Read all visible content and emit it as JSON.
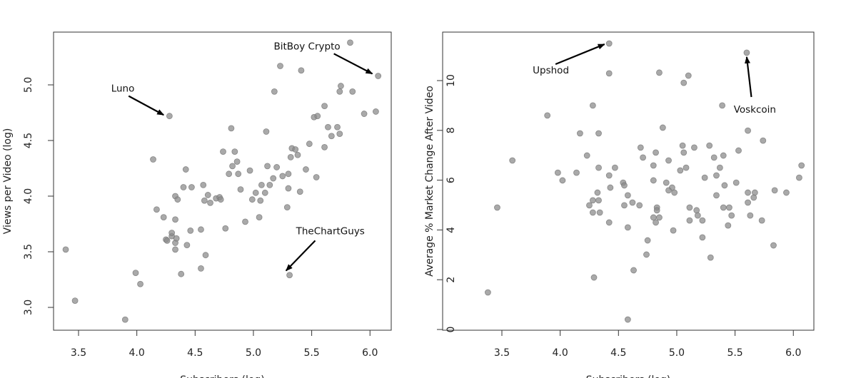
{
  "chart_data": [
    {
      "type": "scatter",
      "title": "",
      "xlabel": "Subscribers (log)",
      "ylabel": "Views per Video (log)",
      "xlim": [
        3.3,
        6.1
      ],
      "ylim": [
        2.8,
        5.45
      ],
      "xticks": [
        "3.5",
        "4.0",
        "4.5",
        "5.0",
        "5.5",
        "6.0"
      ],
      "yticks": [
        "3.0",
        "3.5",
        "4.0",
        "4.5",
        "5.0"
      ],
      "grid": false,
      "point_color": "#8c8c8c",
      "points": [
        [
          3.39,
          3.52
        ],
        [
          3.47,
          3.06
        ],
        [
          3.9,
          2.89
        ],
        [
          3.99,
          3.31
        ],
        [
          4.03,
          3.21
        ],
        [
          4.14,
          4.33
        ],
        [
          4.17,
          3.88
        ],
        [
          4.23,
          3.81
        ],
        [
          4.28,
          4.72
        ],
        [
          4.25,
          3.61
        ],
        [
          4.26,
          3.6
        ],
        [
          4.3,
          3.64
        ],
        [
          4.3,
          3.67
        ],
        [
          4.33,
          4.0
        ],
        [
          4.33,
          3.79
        ],
        [
          4.33,
          3.58
        ],
        [
          4.33,
          3.52
        ],
        [
          4.34,
          3.62
        ],
        [
          4.35,
          3.97
        ],
        [
          4.38,
          3.3
        ],
        [
          4.4,
          4.08
        ],
        [
          4.43,
          3.56
        ],
        [
          4.46,
          3.69
        ],
        [
          4.47,
          4.08
        ],
        [
          4.42,
          4.24
        ],
        [
          4.55,
          3.35
        ],
        [
          4.58,
          3.96
        ],
        [
          4.59,
          3.47
        ],
        [
          4.55,
          3.7
        ],
        [
          4.57,
          4.1
        ],
        [
          4.61,
          4.01
        ],
        [
          4.63,
          3.94
        ],
        [
          4.68,
          3.98
        ],
        [
          4.71,
          3.99
        ],
        [
          4.72,
          3.97
        ],
        [
          4.74,
          4.4
        ],
        [
          4.76,
          3.71
        ],
        [
          4.79,
          4.2
        ],
        [
          4.81,
          4.61
        ],
        [
          4.82,
          4.27
        ],
        [
          4.84,
          4.4
        ],
        [
          4.86,
          4.31
        ],
        [
          4.87,
          4.2
        ],
        [
          4.89,
          4.06
        ],
        [
          4.93,
          3.77
        ],
        [
          4.97,
          4.23
        ],
        [
          4.99,
          3.97
        ],
        [
          5.02,
          4.03
        ],
        [
          5.06,
          3.96
        ],
        [
          5.05,
          3.81
        ],
        [
          5.07,
          4.1
        ],
        [
          5.1,
          4.03
        ],
        [
          5.11,
          4.58
        ],
        [
          5.12,
          4.27
        ],
        [
          5.14,
          4.1
        ],
        [
          5.17,
          4.16
        ],
        [
          5.18,
          4.94
        ],
        [
          5.2,
          4.26
        ],
        [
          5.23,
          5.17
        ],
        [
          5.25,
          4.18
        ],
        [
          5.29,
          3.9
        ],
        [
          5.3,
          4.07
        ],
        [
          5.3,
          4.2
        ],
        [
          5.32,
          4.35
        ],
        [
          5.31,
          3.29
        ],
        [
          5.33,
          4.43
        ],
        [
          5.36,
          4.42
        ],
        [
          5.38,
          4.37
        ],
        [
          5.4,
          4.04
        ],
        [
          5.41,
          5.13
        ],
        [
          5.45,
          4.24
        ],
        [
          5.48,
          4.47
        ],
        [
          5.52,
          4.71
        ],
        [
          5.55,
          4.72
        ],
        [
          5.54,
          4.17
        ],
        [
          5.61,
          4.81
        ],
        [
          5.61,
          4.44
        ],
        [
          5.64,
          4.62
        ],
        [
          5.67,
          4.54
        ],
        [
          5.72,
          4.62
        ],
        [
          5.74,
          4.56
        ],
        [
          5.74,
          4.94
        ],
        [
          5.75,
          4.99
        ],
        [
          5.83,
          5.38
        ],
        [
          5.85,
          4.94
        ],
        [
          5.95,
          4.74
        ],
        [
          6.05,
          4.76
        ],
        [
          6.07,
          5.08
        ]
      ],
      "annotations": [
        {
          "text": "Luno",
          "label_at": [
            3.88,
            4.97
          ],
          "arrow_from": [
            3.93,
            4.9
          ],
          "arrow_to": [
            4.23,
            4.73
          ]
        },
        {
          "text": "BitBoy Crypto",
          "label_at": [
            5.46,
            5.35
          ],
          "arrow_from": [
            5.69,
            5.28
          ],
          "arrow_to": [
            6.02,
            5.1
          ]
        },
        {
          "text": "TheChartGuys",
          "label_at": [
            5.66,
            3.69
          ],
          "arrow_from": [
            5.53,
            3.6
          ],
          "arrow_to": [
            5.28,
            3.33
          ]
        }
      ]
    },
    {
      "type": "scatter",
      "title": "",
      "xlabel": "Subscribers (log)",
      "ylabel": "Average % Market Change After Video",
      "xlim": [
        3.3,
        6.1
      ],
      "ylim": [
        0,
        12
      ],
      "xticks": [
        "3.5",
        "4.0",
        "4.5",
        "5.0",
        "5.5",
        "6.0"
      ],
      "yticks": [
        "0",
        "2",
        "4",
        "6",
        "8",
        "10"
      ],
      "grid": false,
      "point_color": "#8c8c8c",
      "points": [
        [
          4.42,
          11.49
        ],
        [
          4.42,
          10.29
        ],
        [
          4.28,
          9.0
        ],
        [
          3.89,
          8.6
        ],
        [
          4.17,
          7.88
        ],
        [
          4.33,
          7.88
        ],
        [
          3.59,
          6.79
        ],
        [
          4.23,
          6.99
        ],
        [
          4.69,
          7.31
        ],
        [
          4.71,
          6.91
        ],
        [
          3.98,
          6.3
        ],
        [
          4.14,
          6.3
        ],
        [
          4.33,
          6.5
        ],
        [
          4.47,
          6.5
        ],
        [
          4.02,
          5.99
        ],
        [
          4.42,
          6.19
        ],
        [
          4.54,
          5.9
        ],
        [
          4.55,
          5.79
        ],
        [
          4.43,
          5.7
        ],
        [
          4.58,
          5.39
        ],
        [
          4.32,
          5.5
        ],
        [
          4.28,
          5.19
        ],
        [
          4.33,
          5.19
        ],
        [
          4.25,
          4.99
        ],
        [
          4.55,
          4.99
        ],
        [
          4.62,
          5.1
        ],
        [
          4.68,
          4.99
        ],
        [
          3.46,
          4.9
        ],
        [
          4.28,
          4.7
        ],
        [
          4.34,
          4.7
        ],
        [
          4.42,
          4.3
        ],
        [
          4.58,
          4.1
        ],
        [
          4.75,
          3.58
        ],
        [
          4.74,
          3.01
        ],
        [
          4.63,
          2.38
        ],
        [
          4.29,
          2.09
        ],
        [
          3.38,
          1.49
        ],
        [
          4.58,
          0.4
        ],
        [
          5.6,
          11.12
        ],
        [
          4.85,
          10.32
        ],
        [
          5.1,
          10.2
        ],
        [
          5.06,
          9.91
        ],
        [
          5.39,
          9.0
        ],
        [
          4.88,
          8.11
        ],
        [
          5.61,
          7.99
        ],
        [
          5.74,
          7.59
        ],
        [
          5.05,
          7.39
        ],
        [
          5.15,
          7.31
        ],
        [
          5.28,
          7.39
        ],
        [
          5.06,
          7.11
        ],
        [
          4.82,
          7.11
        ],
        [
          5.32,
          6.91
        ],
        [
          5.4,
          6.99
        ],
        [
          5.53,
          7.19
        ],
        [
          4.93,
          6.79
        ],
        [
          4.8,
          6.59
        ],
        [
          6.07,
          6.59
        ],
        [
          5.03,
          6.39
        ],
        [
          5.08,
          6.5
        ],
        [
          5.37,
          6.5
        ],
        [
          5.34,
          6.19
        ],
        [
          5.24,
          6.1
        ],
        [
          4.8,
          5.99
        ],
        [
          6.05,
          6.1
        ],
        [
          4.91,
          5.9
        ],
        [
          4.96,
          5.7
        ],
        [
          4.93,
          5.59
        ],
        [
          4.98,
          5.5
        ],
        [
          5.41,
          5.79
        ],
        [
          5.51,
          5.9
        ],
        [
          5.34,
          5.39
        ],
        [
          5.61,
          5.5
        ],
        [
          5.67,
          5.5
        ],
        [
          5.66,
          5.3
        ],
        [
          5.84,
          5.59
        ],
        [
          5.94,
          5.5
        ],
        [
          5.61,
          5.1
        ],
        [
          4.83,
          4.9
        ],
        [
          4.83,
          4.79
        ],
        [
          5.11,
          4.9
        ],
        [
          5.17,
          4.79
        ],
        [
          5.18,
          4.58
        ],
        [
          5.4,
          4.9
        ],
        [
          5.45,
          4.9
        ],
        [
          5.47,
          4.58
        ],
        [
          5.63,
          4.58
        ],
        [
          4.8,
          4.5
        ],
        [
          4.85,
          4.5
        ],
        [
          4.82,
          4.3
        ],
        [
          5.11,
          4.38
        ],
        [
          5.22,
          4.38
        ],
        [
          5.73,
          4.38
        ],
        [
          5.44,
          4.18
        ],
        [
          4.97,
          3.98
        ],
        [
          5.22,
          3.7
        ],
        [
          5.83,
          3.38
        ],
        [
          5.29,
          2.89
        ]
      ],
      "annotations": [
        {
          "text": "Upshod",
          "label_at": [
            3.92,
            10.43
          ],
          "arrow_from": [
            3.96,
            10.66
          ],
          "arrow_to": [
            4.38,
            11.46
          ]
        },
        {
          "text": "Voskcoin",
          "label_at": [
            5.67,
            8.85
          ],
          "arrow_from": [
            5.64,
            9.34
          ],
          "arrow_to": [
            5.6,
            10.95
          ]
        }
      ]
    }
  ]
}
